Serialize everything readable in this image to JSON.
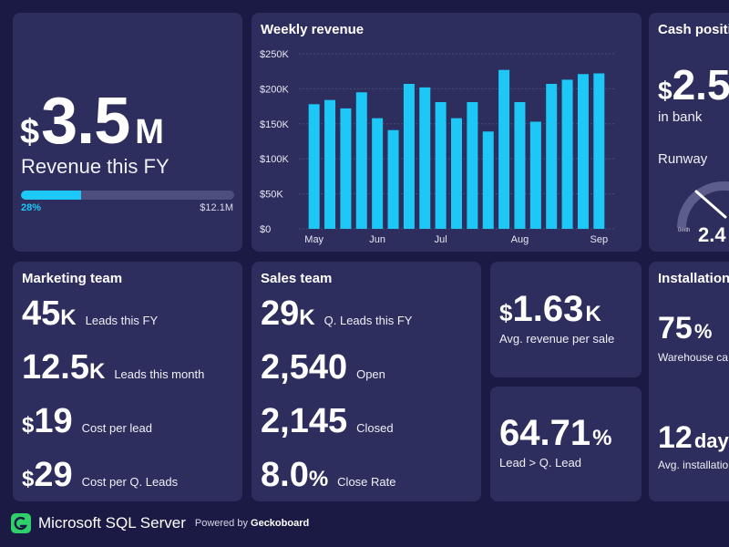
{
  "revenue": {
    "prefix": "$",
    "value": "3.5",
    "suffix": "M",
    "label": "Revenue this FY",
    "progress_fraction": 0.28,
    "progress_label": "28%",
    "target_label": "$12.1M"
  },
  "weekly": {
    "title": "Weekly revenue"
  },
  "chart_data": {
    "type": "bar",
    "title": "Weekly revenue",
    "y_ticks": [
      "$0",
      "$50K",
      "$100K",
      "$150K",
      "$200K",
      "$250K"
    ],
    "ylim": [
      0,
      250000
    ],
    "x_tick_labels": [
      "May",
      "Jun",
      "Jul",
      "Aug",
      "Sep"
    ],
    "x_tick_bar_index": [
      0,
      4,
      8,
      13,
      18
    ],
    "values": [
      178000,
      184000,
      172000,
      195000,
      158000,
      141000,
      207000,
      202000,
      181000,
      158000,
      181000,
      139000,
      227000,
      181000,
      153000,
      207000,
      213000,
      221000,
      222000
    ],
    "bar_color": "#1ec8f6",
    "grid": true
  },
  "cash": {
    "title": "Cash positi",
    "prefix": "$",
    "value": "2.5",
    "sub_label": "in bank",
    "runway_label": "Runway",
    "gauge_min": "0mth",
    "gauge_value": "2.4"
  },
  "marketing": {
    "title": "Marketing team",
    "rows": [
      {
        "prefix": "",
        "num": "45",
        "suffix": "K",
        "label": "Leads this FY"
      },
      {
        "prefix": "",
        "num": "12.5",
        "suffix": "K",
        "label": "Leads this month"
      },
      {
        "prefix": "$",
        "num": "19",
        "suffix": "",
        "label": "Cost per lead"
      },
      {
        "prefix": "$",
        "num": "29",
        "suffix": "",
        "label": "Cost per Q. Leads"
      }
    ]
  },
  "sales": {
    "title": "Sales team",
    "rows": [
      {
        "prefix": "",
        "num": "29",
        "suffix": "K",
        "label": "Q. Leads this FY"
      },
      {
        "prefix": "",
        "num": "2,540",
        "suffix": "",
        "label": "Open"
      },
      {
        "prefix": "",
        "num": "2,145",
        "suffix": "",
        "label": "Closed"
      },
      {
        "prefix": "",
        "num": "8.0",
        "suffix": "%",
        "label": "Close Rate"
      }
    ]
  },
  "avg_sale": {
    "prefix": "$",
    "num": "1.63",
    "suffix": "K",
    "label": "Avg. revenue per sale"
  },
  "lead_rate": {
    "num": "64.71",
    "suffix": "%",
    "label": "Lead > Q. Lead"
  },
  "installation": {
    "title": "Installation",
    "stat1_num": "75",
    "stat1_suffix": "%",
    "stat1_label": "Warehouse ca",
    "stat2_num": "12",
    "stat2_suffix": "day",
    "stat2_label": "Avg. installatio"
  },
  "footer": {
    "title": "Microsoft SQL Server",
    "powered_by": "Powered by",
    "brand": "Geckoboard",
    "logo_color": "#2fd069"
  }
}
